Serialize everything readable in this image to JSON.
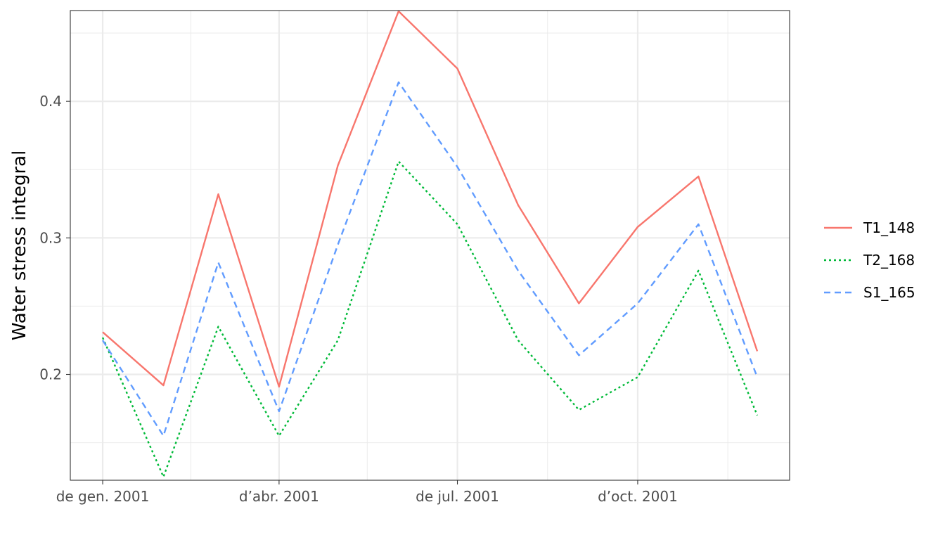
{
  "chart_data": {
    "type": "line",
    "title": "",
    "xlabel": "",
    "ylabel": "Water stress integral",
    "x": [
      "2001-01-01",
      "2001-02-01",
      "2001-03-01",
      "2001-04-01",
      "2001-05-01",
      "2001-06-01",
      "2001-07-01",
      "2001-08-01",
      "2001-09-01",
      "2001-10-01",
      "2001-11-01",
      "2001-12-01"
    ],
    "x_ticks": [
      {
        "date": "2001-01-01",
        "label": "de gen. 2001"
      },
      {
        "date": "2001-04-01",
        "label": "d’abr. 2001"
      },
      {
        "date": "2001-07-01",
        "label": "de jul. 2001"
      },
      {
        "date": "2001-10-01",
        "label": "d’oct. 2001"
      }
    ],
    "x_minor_ticks": [
      "2001-02-15",
      "2001-05-16",
      "2001-08-16",
      "2001-11-16"
    ],
    "xlim": [
      "2001-01-01",
      "2001-12-01"
    ],
    "y_ticks": [
      0.2,
      0.3,
      0.4
    ],
    "y_minor_ticks": [
      0.15,
      0.25,
      0.35,
      0.45
    ],
    "ylim": [
      0.1225,
      0.4665
    ],
    "grid": true,
    "legend_position": "right",
    "series": [
      {
        "name": "T1_148",
        "color": "#F8766D",
        "linetype": "solid",
        "values": [
          0.231,
          0.192,
          0.332,
          0.191,
          0.353,
          0.466,
          0.424,
          0.324,
          0.252,
          0.308,
          0.345,
          0.217
        ]
      },
      {
        "name": "T2_168",
        "color": "#00BA38",
        "linetype": "dotted",
        "values": [
          0.227,
          0.125,
          0.235,
          0.155,
          0.225,
          0.356,
          0.31,
          0.225,
          0.174,
          0.198,
          0.276,
          0.17
        ]
      },
      {
        "name": "S1_165",
        "color": "#619CFF",
        "linetype": "dashed",
        "values": [
          0.225,
          0.155,
          0.282,
          0.173,
          0.295,
          0.414,
          0.352,
          0.276,
          0.214,
          0.252,
          0.31,
          0.198
        ]
      }
    ]
  }
}
